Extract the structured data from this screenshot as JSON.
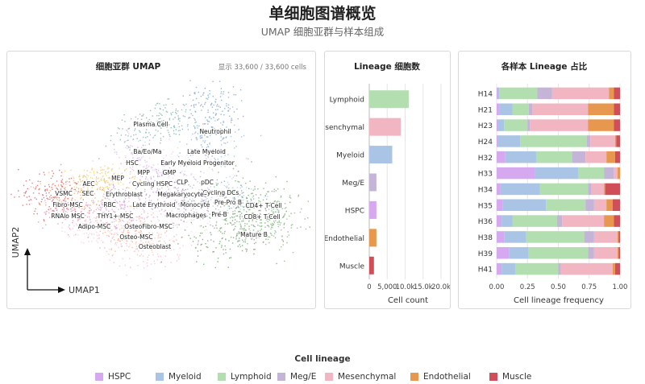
{
  "title": "单细胞图谱概览",
  "subtitle": "UMAP 细胞亚群与样本组成",
  "colors": {
    "HSPC": "#d6a8f0",
    "Myeloid": "#a9c4e4",
    "Lymphoid": "#b3deb0",
    "Meg/E": "#c4b5d8",
    "Mesenchymal": "#f2b6c3",
    "Endothelial": "#e7984e",
    "Muscle": "#cf4e58"
  },
  "umap": {
    "title": "细胞亚群 UMAP",
    "count_text": "显示 33,600 / 33,600 cells",
    "xlabel": "UMAP1",
    "ylabel": "UMAP2",
    "labels": [
      "Plasma Cell",
      "Neutrophil",
      "Ba/Eo/Ma",
      "Late Myeloid",
      "HSC",
      "Early Myeloid Progenitor",
      "MPP",
      "GMP",
      "MEP",
      "CLP",
      "pDC",
      "AEC",
      "Cycling HSPC",
      "Cycling DCs",
      "VSMC",
      "SEC",
      "Erythroblast",
      "Megakaryocyte",
      "CD4+ T-Cell",
      "Fibro-MSC",
      "RBC",
      "Late Erythroid",
      "Monocyte",
      "Pre-Pro B",
      "RNAlo MSC",
      "THY1+ MSC",
      "Macrophages",
      "Pre-B",
      "CD8+ T-Cell",
      "Adipo-MSC",
      "OsteoFibro-MSC",
      "Osteo-MSC",
      "Mature B",
      "Osteoblast"
    ]
  },
  "legend": {
    "title": "Cell lineage",
    "items": [
      "HSPC",
      "Myeloid",
      "Lymphoid",
      "Meg/E",
      "Mesenchymal",
      "Endothelial",
      "Muscle"
    ]
  },
  "chart_data": [
    {
      "type": "bar",
      "orientation": "horizontal",
      "title": "Lineage 细胞数",
      "xlabel": "Cell count",
      "ylabel": "",
      "categories": [
        "Lymphoid",
        "Mesenchymal",
        "Myeloid",
        "Meg/E",
        "HSPC",
        "Endothelial",
        "Muscle"
      ],
      "values": [
        11000,
        8800,
        6400,
        2000,
        2000,
        2000,
        1300
      ],
      "xlim": [
        0,
        20000
      ],
      "xticks": [
        "0",
        "5,000",
        "10.0k",
        "15.0k",
        "20.0k"
      ],
      "grid": true
    },
    {
      "type": "bar",
      "stacked": true,
      "normalized": true,
      "orientation": "horizontal",
      "title": "各样本 Lineage 占比",
      "xlabel": "Cell lineage frequency",
      "ylabel": "",
      "categories": [
        "H14",
        "H21",
        "H23",
        "H24",
        "H32",
        "H33",
        "H34",
        "H35",
        "H36",
        "H38",
        "H39",
        "H41"
      ],
      "xlim": [
        0,
        1
      ],
      "xticks": [
        "0.00",
        "0.25",
        "0.50",
        "0.75",
        "1.00"
      ],
      "series": [
        {
          "name": "HSPC",
          "values": [
            0.01,
            0.02,
            0.01,
            0.01,
            0.07,
            0.31,
            0.03,
            0.05,
            0.04,
            0.06,
            0.1,
            0.04
          ]
        },
        {
          "name": "Myeloid",
          "values": [
            0.01,
            0.11,
            0.05,
            0.18,
            0.25,
            0.35,
            0.32,
            0.35,
            0.09,
            0.18,
            0.16,
            0.11
          ]
        },
        {
          "name": "Lymphoid",
          "values": [
            0.31,
            0.13,
            0.19,
            0.54,
            0.29,
            0.21,
            0.39,
            0.32,
            0.36,
            0.47,
            0.48,
            0.35
          ]
        },
        {
          "name": "Meg/E",
          "values": [
            0.12,
            0.03,
            0.02,
            0.03,
            0.11,
            0.08,
            0.03,
            0.07,
            0.04,
            0.08,
            0.05,
            0.02
          ]
        },
        {
          "name": "Mesenchymal",
          "values": [
            0.46,
            0.45,
            0.47,
            0.2,
            0.17,
            0.03,
            0.1,
            0.1,
            0.34,
            0.19,
            0.19,
            0.42
          ]
        },
        {
          "name": "Endothelial",
          "values": [
            0.04,
            0.21,
            0.21,
            0.01,
            0.07,
            0.02,
            0.01,
            0.05,
            0.08,
            0.01,
            0.01,
            0.02
          ]
        },
        {
          "name": "Muscle",
          "values": [
            0.05,
            0.05,
            0.05,
            0.03,
            0.04,
            0.0,
            0.12,
            0.06,
            0.05,
            0.01,
            0.01,
            0.04
          ]
        }
      ]
    }
  ]
}
